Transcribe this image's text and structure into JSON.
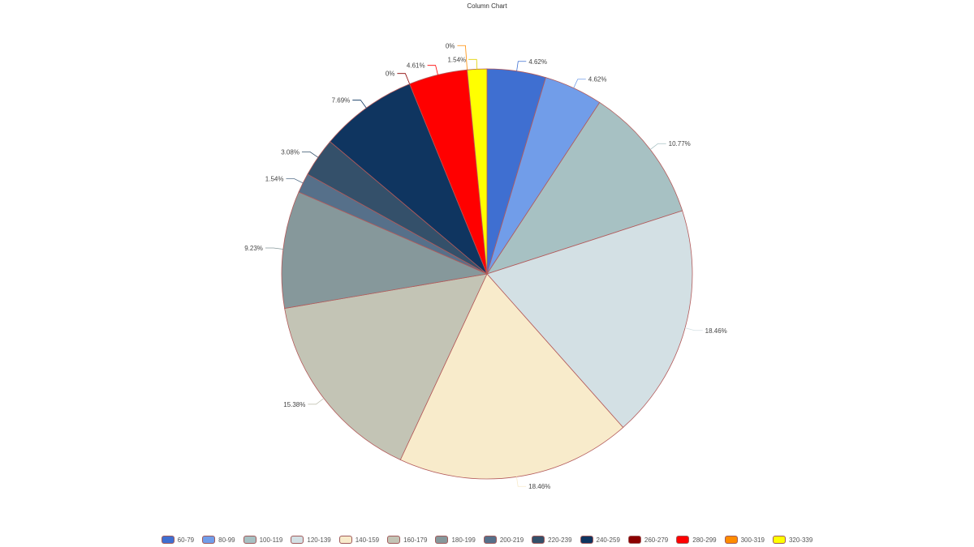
{
  "chart_data": {
    "type": "pie",
    "title": "Column Chart",
    "legend_position": "bottom",
    "slices": [
      {
        "label": "60-79",
        "percent": 4.62,
        "color": "#3f6fd1"
      },
      {
        "label": "80-99",
        "percent": 4.62,
        "color": "#719de9"
      },
      {
        "label": "100-119",
        "percent": 10.77,
        "color": "#a7c1c3"
      },
      {
        "label": "120-139",
        "percent": 18.46,
        "color": "#d3e0e4"
      },
      {
        "label": "140-159",
        "percent": 18.46,
        "color": "#f8ebcb"
      },
      {
        "label": "160-179",
        "percent": 15.38,
        "color": "#c3c4b5"
      },
      {
        "label": "180-199",
        "percent": 9.23,
        "color": "#86989b"
      },
      {
        "label": "200-219",
        "percent": 1.54,
        "color": "#56708a"
      },
      {
        "label": "220-239",
        "percent": 3.08,
        "color": "#34506a"
      },
      {
        "label": "240-259",
        "percent": 7.69,
        "color": "#0f3560"
      },
      {
        "label": "260-279",
        "percent": 0,
        "color": "#8b0000"
      },
      {
        "label": "280-299",
        "percent": 4.61,
        "color": "#ff0000"
      },
      {
        "label": "300-319",
        "percent": 0,
        "color": "#ff8c00"
      },
      {
        "label": "320-339",
        "percent": 1.54,
        "color": "#ffff00"
      }
    ]
  }
}
